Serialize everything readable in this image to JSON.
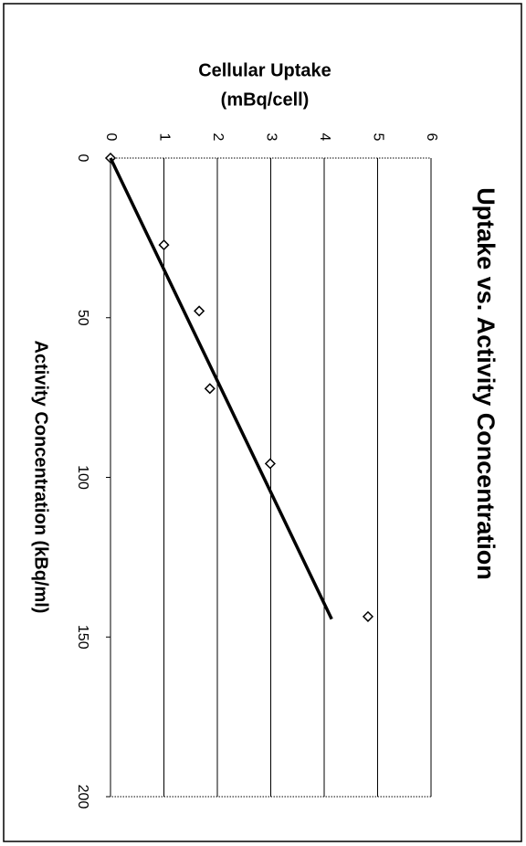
{
  "chart_data": {
    "type": "scatter",
    "title": "Uptake vs. Activity Concentration",
    "y_label": [
      "Cellular Uptake",
      "(mBq/cell)"
    ],
    "x_label": "Activity Concentration (kBq/ml)",
    "xlim": [
      0,
      200
    ],
    "xticks": [
      0,
      50,
      100,
      150,
      200
    ],
    "ylim": [
      0,
      6
    ],
    "yticks": [
      0,
      1,
      2,
      3,
      4,
      5,
      6
    ],
    "grid": true,
    "series": [
      {
        "x": [
          0,
          27.2,
          47.9,
          72.2,
          95.7,
          143.6
        ],
        "values": [
          0,
          1.0,
          1.66,
          1.86,
          2.99,
          4.82
        ],
        "color": "#000000",
        "marker": "diamond"
      },
      {
        "x": [
          0,
          144.4
        ],
        "values": [
          0,
          4.14
        ],
        "color": "#000000",
        "marker": "line"
      }
    ]
  }
}
